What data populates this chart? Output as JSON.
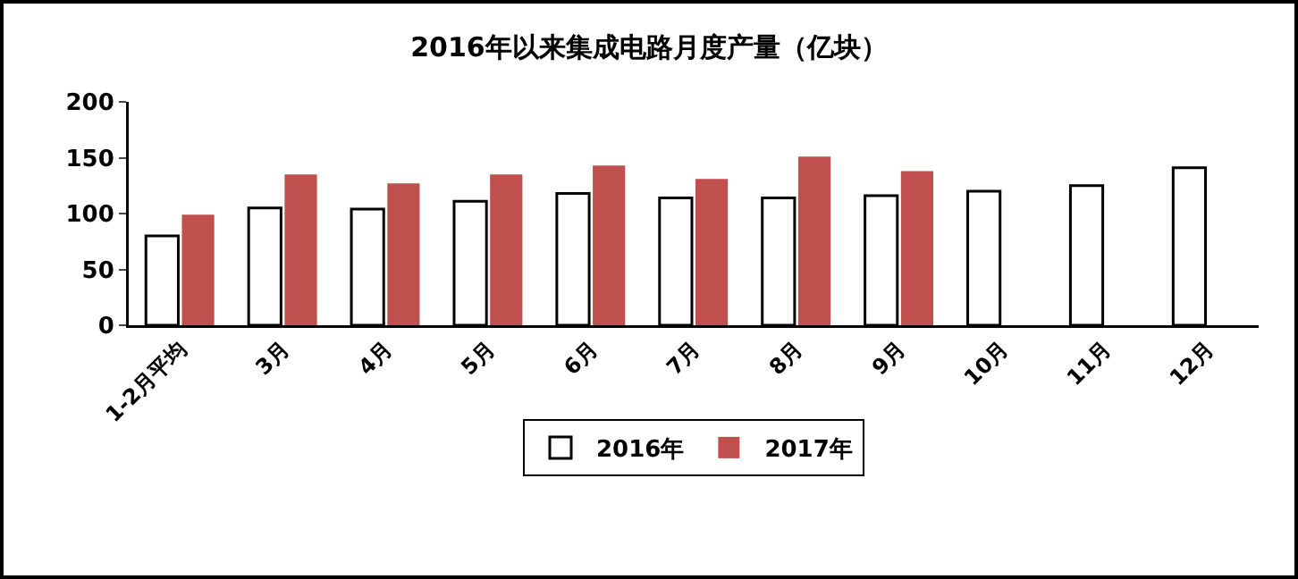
{
  "chart_data": {
    "type": "bar",
    "title": "2016年以来集成电路月度产量（亿块）",
    "categories": [
      "1-2月平均",
      "3月",
      "4月",
      "5月",
      "6月",
      "7月",
      "8月",
      "9月",
      "10月",
      "11月",
      "12月"
    ],
    "series": [
      {
        "name": "2016年",
        "color": "#ffffff",
        "values": [
          80,
          105,
          104,
          111,
          118,
          114,
          114,
          116,
          120,
          125,
          141
        ]
      },
      {
        "name": "2017年",
        "color": "#c0504d",
        "values": [
          99,
          135,
          127,
          135,
          143,
          131,
          151,
          138,
          null,
          null,
          null
        ]
      }
    ],
    "ylim": [
      0,
      200
    ],
    "yticks": [
      0,
      50,
      100,
      150,
      200
    ],
    "grid": false,
    "legend": "bottom"
  }
}
